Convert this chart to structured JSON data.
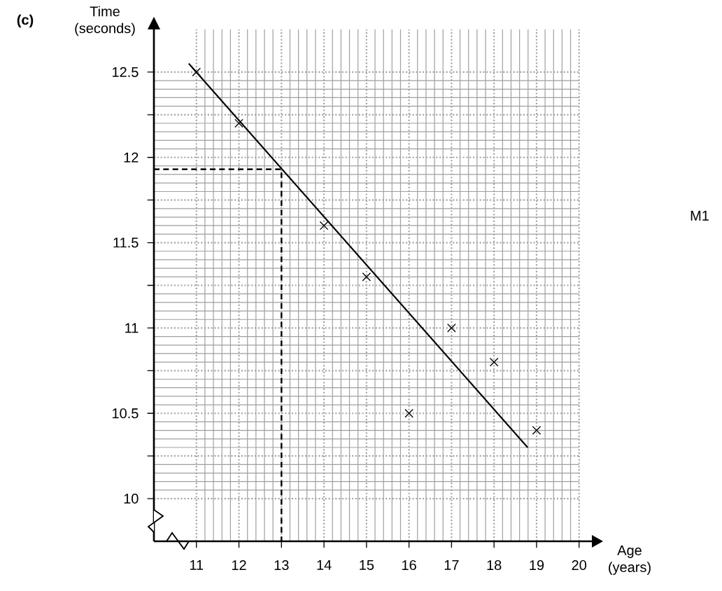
{
  "chart_data": {
    "type": "scatter",
    "xlabel": "Age (years)",
    "ylabel": "Time (seconds)",
    "annotations": [
      "(c)",
      "M1"
    ],
    "xlim": [
      10,
      20
    ],
    "ylim": [
      9.75,
      12.75
    ],
    "xticks": [
      11,
      12,
      13,
      14,
      15,
      16,
      17,
      18,
      19,
      20
    ],
    "yticks": [
      10,
      {
        "value": 10.25,
        "label": null
      },
      10.5,
      {
        "value": 10.75,
        "label": null
      },
      11,
      {
        "value": 11.25,
        "label": null
      },
      11.5,
      {
        "value": 11.75,
        "label": null
      },
      12,
      {
        "value": 12.25,
        "label": null
      },
      12.5
    ],
    "grid": true,
    "series": [
      {
        "color": "#000000",
        "x": [
          11,
          12,
          14,
          15,
          16,
          17,
          18,
          19
        ],
        "values": [
          12.5,
          12.2,
          11.6,
          11.3,
          10.5,
          11.0,
          10.8,
          10.4
        ],
        "marker": "cross"
      },
      {
        "type": "line",
        "color": "#000000",
        "line_style": "solid",
        "x": [
          10.82,
          18.79
        ],
        "values": [
          12.55,
          10.3
        ]
      },
      {
        "type": "line",
        "color": "#000000",
        "line_style": "dashed",
        "x": [
          10,
          13,
          13
        ],
        "values": [
          11.93,
          11.93,
          9.75
        ]
      }
    ]
  }
}
